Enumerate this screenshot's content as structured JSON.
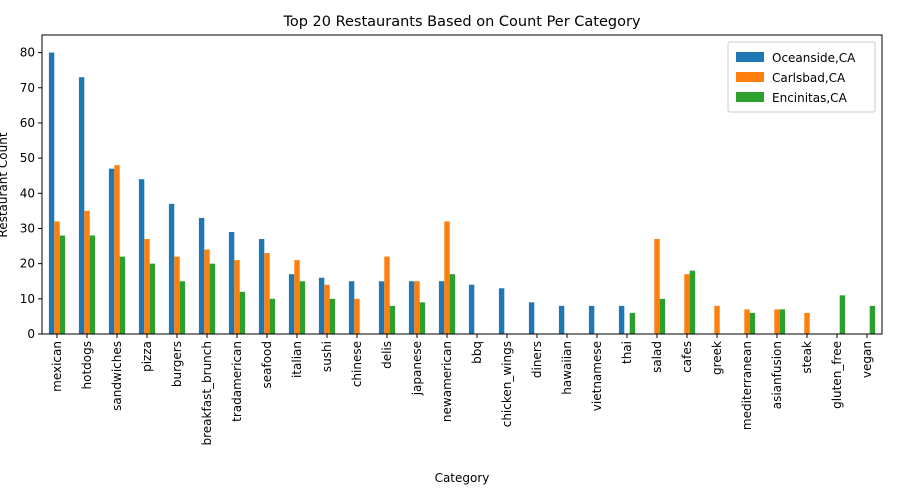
{
  "chart_data": {
    "type": "bar",
    "title": "Top 20 Restaurants Based on Count Per Category",
    "xlabel": "Category",
    "ylabel": "Restaurant Count",
    "ylim": [
      0,
      85
    ],
    "yticks": [
      0,
      10,
      20,
      30,
      40,
      50,
      60,
      70,
      80
    ],
    "grid": false,
    "legend_position": "top-right",
    "categories": [
      "mexican",
      "hotdogs",
      "sandwiches",
      "pizza",
      "burgers",
      "breakfast_brunch",
      "tradamerican",
      "seafood",
      "italian",
      "sushi",
      "chinese",
      "delis",
      "japanese",
      "newamerican",
      "bbq",
      "chicken_wings",
      "diners",
      "hawaiian",
      "vietnamese",
      "thai",
      "salad",
      "cafes",
      "greek",
      "mediterranean",
      "asianfusion",
      "steak",
      "gluten_free",
      "vegan"
    ],
    "series": [
      {
        "name": "Oceanside,CA",
        "color": "#1f77b4",
        "values": [
          80,
          73,
          47,
          44,
          37,
          33,
          29,
          27,
          17,
          16,
          15,
          15,
          15,
          15,
          14,
          13,
          9,
          8,
          8,
          8,
          0,
          0,
          0,
          0,
          0,
          0,
          0,
          0
        ]
      },
      {
        "name": "Carlsbad,CA",
        "color": "#ff7f0e",
        "values": [
          32,
          35,
          48,
          27,
          22,
          24,
          21,
          23,
          21,
          14,
          10,
          22,
          15,
          32,
          0,
          0,
          0,
          0,
          0,
          0,
          27,
          17,
          8,
          7,
          7,
          6,
          0,
          0
        ]
      },
      {
        "name": "Encinitas,CA",
        "color": "#2ca02c",
        "values": [
          28,
          28,
          22,
          20,
          15,
          20,
          12,
          10,
          15,
          10,
          0,
          8,
          9,
          17,
          0,
          0,
          0,
          0,
          0,
          6,
          10,
          18,
          0,
          6,
          7,
          0,
          11,
          8
        ]
      }
    ]
  }
}
